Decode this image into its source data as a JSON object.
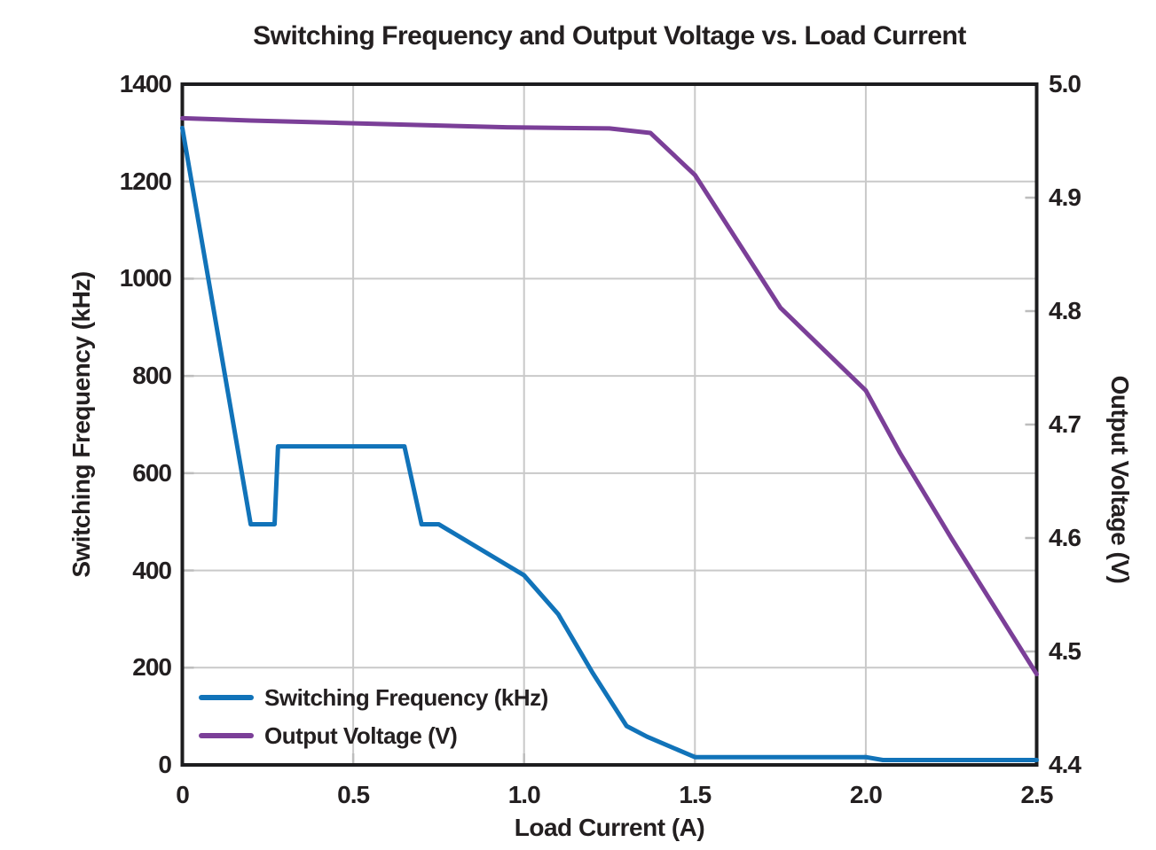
{
  "title": "Switching Frequency and Output Voltage vs. Load Current",
  "colors": {
    "frequency_line": "#1173b9",
    "voltage_line": "#7b3f98",
    "grid": "#c9c9c9",
    "tick": "#bdbdbd",
    "frame": "#1d1d1f",
    "text": "#231f20",
    "background": "#ffffff"
  },
  "chart_data": {
    "type": "line",
    "title": "Switching Frequency and Output Voltage vs. Load Current",
    "xlabel": "Load Current (A)",
    "ylabel_left": "Switching Frequency (kHz)",
    "ylabel_right": "Output Voltage (V)",
    "x_range": [
      0,
      2.5
    ],
    "y_left_range": [
      0,
      1400
    ],
    "y_right_range": [
      4.4,
      5.0
    ],
    "x_ticks": [
      "0",
      "0.5",
      "1.0",
      "1.5",
      "2.0",
      "2.5"
    ],
    "x_tick_values": [
      0,
      0.5,
      1.0,
      1.5,
      2.0,
      2.5
    ],
    "y_left_ticks": [
      "0",
      "200",
      "400",
      "600",
      "800",
      "1000",
      "1200",
      "1400"
    ],
    "y_left_tick_values": [
      0,
      200,
      400,
      600,
      800,
      1000,
      1200,
      1400
    ],
    "y_right_ticks": [
      "4.4",
      "4.5",
      "4.6",
      "4.7",
      "4.8",
      "4.9",
      "5.0"
    ],
    "y_right_tick_values": [
      4.4,
      4.5,
      4.6,
      4.7,
      4.8,
      4.9,
      5.0
    ],
    "grid": true,
    "legend_position": "lower-left",
    "series": [
      {
        "name": "Switching Frequency (kHz)",
        "axis": "left",
        "color": "#1173b9",
        "x": [
          0,
          0.2,
          0.27,
          0.28,
          0.65,
          0.7,
          0.75,
          1.0,
          1.1,
          1.2,
          1.3,
          1.36,
          1.5,
          2.0,
          2.05,
          2.5
        ],
        "y": [
          1310,
          495,
          495,
          655,
          655,
          495,
          495,
          390,
          310,
          190,
          80,
          58,
          16,
          16,
          10,
          10
        ]
      },
      {
        "name": "Output Voltage (V)",
        "axis": "right",
        "color": "#7b3f98",
        "x": [
          0,
          0.2,
          0.45,
          0.7,
          0.95,
          1.25,
          1.37,
          1.5,
          1.75,
          2.0,
          2.1,
          2.25,
          2.5
        ],
        "y": [
          4.97,
          4.968,
          4.966,
          4.964,
          4.962,
          4.961,
          4.957,
          4.92,
          4.803,
          4.73,
          4.675,
          4.6,
          4.48
        ]
      }
    ]
  }
}
